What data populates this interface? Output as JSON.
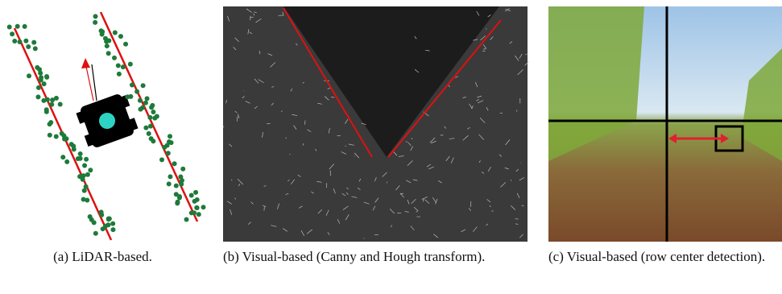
{
  "figure": {
    "subfigures": [
      {
        "caption": "(a) LiDAR-based."
      },
      {
        "caption": "(b) Visual-based (Canny and Hough transform)."
      },
      {
        "caption": "(c) Visual-based (row center detection)."
      }
    ]
  }
}
